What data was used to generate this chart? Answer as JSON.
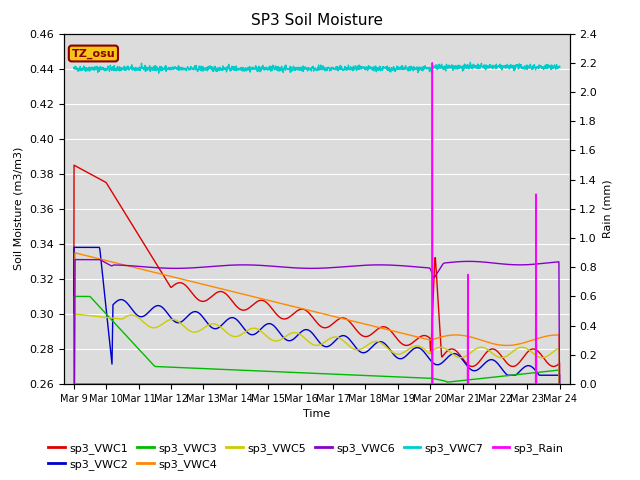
{
  "title": "SP3 Soil Moisture",
  "xlabel": "Time",
  "ylabel_left": "Soil Moisture (m3/m3)",
  "ylabel_right": "Rain (mm)",
  "ylim_left": [
    0.26,
    0.46
  ],
  "ylim_right": [
    0.0,
    2.4
  ],
  "background_color": "#dcdcdc",
  "tz_label": "TZ_osu",
  "tz_bg": "#f5c518",
  "tz_fg": "#8b0000",
  "series_colors": {
    "sp3_VWC1": "#dd0000",
    "sp3_VWC2": "#0000cc",
    "sp3_VWC3": "#00bb00",
    "sp3_VWC4": "#ff8800",
    "sp3_VWC5": "#cccc00",
    "sp3_VWC6": "#8800cc",
    "sp3_VWC7": "#00cccc",
    "sp3_Rain": "#ff00ff"
  },
  "x_ticks_labels": [
    "Mar 9",
    "Mar 10",
    "Mar 11",
    "Mar 12",
    "Mar 13",
    "Mar 14",
    "Mar 15",
    "Mar 16",
    "Mar 17",
    "Mar 18",
    "Mar 19",
    "Mar 20",
    "Mar 21",
    "Mar 22",
    "Mar 23",
    "Mar 24"
  ],
  "figsize": [
    6.4,
    4.8
  ],
  "dpi": 100
}
